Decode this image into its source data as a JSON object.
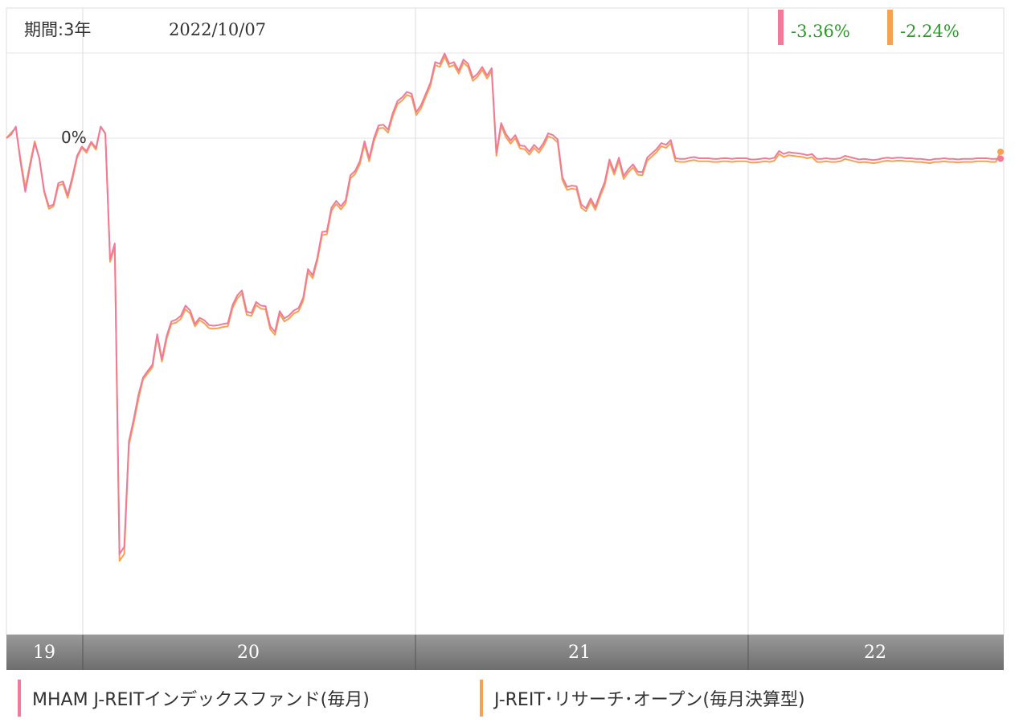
{
  "chart_data": {
    "type": "line",
    "period_label": "期間:3年",
    "date": "2022/10/07",
    "zero_label": "0%",
    "x_ticks": [
      "19",
      "20",
      "21",
      "22"
    ],
    "series": [
      {
        "name": "MHAM J-REITインデックスファンド(毎月)",
        "color": "#f07a9a",
        "end_value": "-3.36%",
        "values": [
          0,
          0.6,
          1.9,
          -4,
          -8.8,
          -4.7,
          -0.8,
          -3.3,
          -8.6,
          -11.2,
          -10.9,
          -7.4,
          -7.1,
          -9.4,
          -6.3,
          -2.9,
          -1.4,
          -2.1,
          -0.6,
          -1.6,
          1.9,
          0.8,
          -19.9,
          -17.3,
          -68.3,
          -67.1,
          -49.8,
          -46.2,
          -42.2,
          -39.3,
          -38.2,
          -37.2,
          -32.2,
          -36.3,
          -32.5,
          -30.1,
          -29.8,
          -29.2,
          -27.5,
          -28.3,
          -30.5,
          -29.5,
          -29.9,
          -30.7,
          -30.8,
          -30.7,
          -30.5,
          -30.4,
          -27.4,
          -25.8,
          -25,
          -28.5,
          -28.7,
          -26.9,
          -27.5,
          -27.6,
          -30.9,
          -31.8,
          -28.4,
          -29.6,
          -29.1,
          -28.3,
          -27.9,
          -26.2,
          -21.5,
          -22.5,
          -19.6,
          -15.4,
          -15.3,
          -11.4,
          -10.3,
          -11.2,
          -10.2,
          -6.1,
          -5.4,
          -3.8,
          -0.5,
          -3.3,
          0,
          2.1,
          2.2,
          1.4,
          4.1,
          6.1,
          6.7,
          7.6,
          7.3,
          4.3,
          5.4,
          7.3,
          9.1,
          12.5,
          12.2,
          13.9,
          12.2,
          12.5,
          11.1,
          12.9,
          12.2,
          9.9,
          10.6,
          11.7,
          10.3,
          11.5,
          -2.4,
          2.5,
          0.7,
          -0.4,
          0.5,
          -1.2,
          -1.3,
          -2.2,
          -1.1,
          -1.9,
          -0.8,
          0.8,
          0.5,
          -0.2,
          -6.4,
          -8,
          -7.8,
          -7.9,
          -10.9,
          -11.5,
          -9.9,
          -11.3,
          -9.1,
          -7.2,
          -3.5,
          -5.5,
          -3.2,
          -6.2,
          -5.1,
          -4.3,
          -5.5,
          -5.6,
          -3.2,
          -2.5,
          -1.8,
          -0.8,
          -1.1,
          -0.3,
          -3.3,
          -3.4,
          -3.4,
          -3.2,
          -3.1,
          -3.3,
          -3.3,
          -3.3,
          -3.4,
          -3.4,
          -3.3,
          -3.3,
          -3.4,
          -3.3,
          -3.3,
          -3.3,
          -3.5,
          -3.5,
          -3.4,
          -3.3,
          -3.4,
          -3.2,
          -2.1,
          -2.6,
          -2.3,
          -2.4,
          -2.5,
          -2.6,
          -2.8,
          -2.6,
          -3.4,
          -3.4,
          -3.3,
          -3.4,
          -3.4,
          -3.3,
          -2.9,
          -3.1,
          -3.3,
          -3.5,
          -3.4,
          -3.5,
          -3.6,
          -3.5,
          -3.3,
          -3.2,
          -3.3,
          -3.2,
          -3.2,
          -3.3,
          -3.3,
          -3.4,
          -3.4,
          -3.5,
          -3.6,
          -3.4,
          -3.4,
          -3.3,
          -3.4,
          -3.4,
          -3.5,
          -3.4,
          -3.4,
          -3.4,
          -3.3,
          -3.3,
          -3.3,
          -3.4,
          -3.4,
          -3.36
        ]
      },
      {
        "name": "J-REIT･リサーチ･オープン(毎月決算型)",
        "color": "#f5a253",
        "end_value": "-2.24%",
        "values": [
          0,
          0.9,
          1.7,
          -3.5,
          -8.2,
          -4.2,
          -0.5,
          -3.4,
          -8.8,
          -11.6,
          -11.2,
          -7.8,
          -7.5,
          -9.8,
          -6.8,
          -3.2,
          -1.6,
          -2.4,
          -0.8,
          -1.9,
          1.9,
          0.7,
          -20.3,
          -17.9,
          -69.4,
          -68.3,
          -50.4,
          -46.8,
          -42.9,
          -39.6,
          -38.6,
          -37.6,
          -32.6,
          -36.7,
          -33,
          -30.5,
          -30.3,
          -29.7,
          -28.1,
          -28.8,
          -30.9,
          -29.9,
          -30.4,
          -31.2,
          -31.3,
          -31.2,
          -31,
          -30.9,
          -27.9,
          -26.3,
          -25.5,
          -29,
          -29.2,
          -27.4,
          -28,
          -28.1,
          -31.4,
          -32.3,
          -28.9,
          -30.1,
          -29.6,
          -28.8,
          -28.4,
          -26.7,
          -22,
          -23,
          -20.1,
          -15.9,
          -15.8,
          -11.9,
          -10.8,
          -11.7,
          -10.7,
          -6.6,
          -5.9,
          -4.3,
          -1,
          -3.8,
          -0.5,
          1.6,
          1.7,
          0.9,
          3.6,
          5.6,
          6.2,
          7.1,
          6.8,
          3.8,
          4.9,
          6.8,
          8.6,
          12,
          11.7,
          13.4,
          11.7,
          12,
          10.6,
          12.4,
          11.7,
          9.4,
          10.1,
          11.2,
          9.8,
          11,
          -2.9,
          2,
          0.2,
          -0.9,
          0,
          -1.7,
          -1.8,
          -2.7,
          -1.6,
          -2.4,
          -1.3,
          0.3,
          0,
          -0.7,
          -6.9,
          -8.5,
          -8.3,
          -8.4,
          -11.4,
          -12,
          -10.4,
          -11.8,
          -9.6,
          -7.7,
          -4,
          -6,
          -3.7,
          -6.7,
          -5.6,
          -4.8,
          -6,
          -6.1,
          -3.7,
          -3,
          -2.3,
          -1.3,
          -1.6,
          -0.8,
          -3.8,
          -3.9,
          -3.9,
          -3.7,
          -3.6,
          -3.8,
          -3.8,
          -3.8,
          -3.9,
          -3.9,
          -3.8,
          -3.8,
          -3.9,
          -3.8,
          -3.8,
          -3.8,
          -4,
          -4,
          -3.9,
          -3.8,
          -3.9,
          -3.7,
          -2.6,
          -3.1,
          -2.8,
          -2.9,
          -3,
          -3.1,
          -3.3,
          -3.1,
          -3.9,
          -3.9,
          -3.8,
          -3.9,
          -3.9,
          -3.8,
          -3.4,
          -3.6,
          -3.8,
          -4,
          -3.9,
          -4,
          -4.1,
          -4,
          -3.8,
          -3.7,
          -3.8,
          -3.7,
          -3.7,
          -3.8,
          -3.8,
          -3.9,
          -3.9,
          -4,
          -4.1,
          -3.9,
          -3.9,
          -3.8,
          -3.9,
          -3.9,
          -4,
          -3.9,
          -3.9,
          -3.9,
          -3.8,
          -3.8,
          -3.8,
          -3.9,
          -3.9,
          -2.24
        ]
      }
    ]
  },
  "colors": {
    "grid": "#dddddd",
    "axis_band_top": "#9a9a9a",
    "axis_band_bottom": "#6e6e6e",
    "positive_text": "#2a9a2a",
    "header_text": "#333333"
  }
}
